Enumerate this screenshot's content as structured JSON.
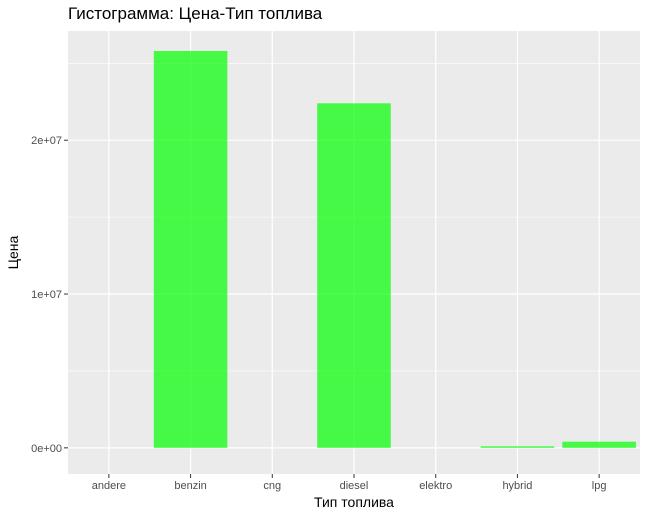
{
  "chart_data": {
    "type": "bar",
    "title": "Гистограмма: Цена-Тип топлива",
    "xlabel": "Тип топлива",
    "ylabel": "Цена",
    "categories": [
      "andere",
      "benzin",
      "cng",
      "diesel",
      "elektro",
      "hybrid",
      "lpg"
    ],
    "values": [
      0,
      25800000,
      0,
      22400000,
      0,
      100000,
      400000
    ],
    "ylim": [
      -1700000,
      27100000
    ],
    "yticks": [
      0,
      10000000,
      20000000
    ],
    "ytick_labels": [
      "0e+00",
      "1e+07",
      "2e+07"
    ],
    "grid": true,
    "colors": {
      "bar": "#00ff00",
      "panel": "#ebebeb",
      "grid": "#ffffff",
      "tick_text": "#4d4d4d"
    }
  }
}
